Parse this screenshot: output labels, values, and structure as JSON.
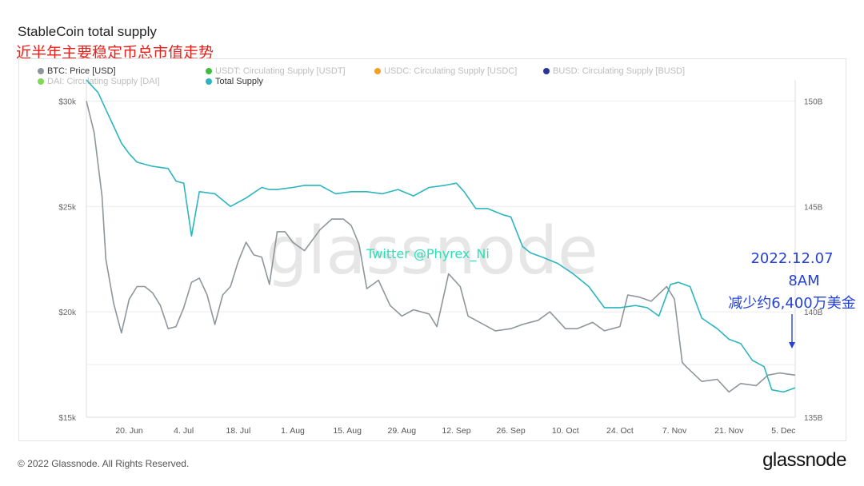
{
  "header": {
    "title": "StableCoin total supply",
    "subtitle": "近半年主要稳定币总市值走势"
  },
  "legend": [
    {
      "label": "BTC: Price [USD]",
      "color": "#8f969a",
      "active": true
    },
    {
      "label": "USDT: Circulating Supply [USDT]",
      "color": "#3bbf3b",
      "active": false
    },
    {
      "label": "USDC: Circulating Supply [USDC]",
      "color": "#f2a122",
      "active": false
    },
    {
      "label": "BUSD: Circulating Supply [BUSD]",
      "color": "#28349c",
      "active": false
    },
    {
      "label": "DAI: Circulating Supply [DAI]",
      "color": "#7ed957",
      "active": false
    },
    {
      "label": "Total Supply",
      "color": "#2bb6bf",
      "active": true
    }
  ],
  "watermark": {
    "text": "glassnode",
    "twitter": "Twitter @Phyrex_Ni"
  },
  "annotation": {
    "lines": [
      "2022.12.07",
      "8AM",
      "减少约6,400万美金"
    ],
    "color": "#2442d6"
  },
  "chart_data": {
    "type": "line",
    "x_ticks": [
      "20. Jun",
      "4. Jul",
      "18. Jul",
      "1. Aug",
      "15. Aug",
      "29. Aug",
      "12. Sep",
      "26. Sep",
      "10. Oct",
      "24. Oct",
      "7. Nov",
      "21. Nov",
      "5. Dec"
    ],
    "x_range": [
      "2022-06-09",
      "2022-12-08"
    ],
    "y_left": {
      "ticks": [
        "$15k",
        "$20k",
        "$25k",
        "$30k"
      ],
      "range": [
        15000,
        31000
      ]
    },
    "y_right": {
      "ticks": [
        "135B",
        "140B",
        "145B",
        "150B"
      ],
      "range": [
        135000000000,
        151000000000
      ]
    },
    "grid": true,
    "legend_position": "top",
    "series": [
      {
        "name": "BTC: Price [USD]",
        "axis": "left",
        "color": "#8f969a",
        "x": [
          "2022-06-09",
          "2022-06-11",
          "2022-06-13",
          "2022-06-14",
          "2022-06-16",
          "2022-06-18",
          "2022-06-20",
          "2022-06-22",
          "2022-06-24",
          "2022-06-26",
          "2022-06-28",
          "2022-06-30",
          "2022-07-02",
          "2022-07-04",
          "2022-07-06",
          "2022-07-08",
          "2022-07-10",
          "2022-07-12",
          "2022-07-14",
          "2022-07-16",
          "2022-07-18",
          "2022-07-20",
          "2022-07-22",
          "2022-07-24",
          "2022-07-26",
          "2022-07-28",
          "2022-07-30",
          "2022-08-01",
          "2022-08-04",
          "2022-08-08",
          "2022-08-11",
          "2022-08-14",
          "2022-08-16",
          "2022-08-18",
          "2022-08-20",
          "2022-08-23",
          "2022-08-26",
          "2022-08-29",
          "2022-09-01",
          "2022-09-05",
          "2022-09-07",
          "2022-09-10",
          "2022-09-13",
          "2022-09-15",
          "2022-09-19",
          "2022-09-22",
          "2022-09-26",
          "2022-09-29",
          "2022-10-03",
          "2022-10-06",
          "2022-10-10",
          "2022-10-13",
          "2022-10-17",
          "2022-10-20",
          "2022-10-24",
          "2022-10-26",
          "2022-10-29",
          "2022-11-01",
          "2022-11-05",
          "2022-11-07",
          "2022-11-09",
          "2022-11-10",
          "2022-11-14",
          "2022-11-18",
          "2022-11-21",
          "2022-11-24",
          "2022-11-28",
          "2022-12-01",
          "2022-12-04",
          "2022-12-08"
        ],
        "values": [
          30000,
          28500,
          25500,
          22500,
          20400,
          19000,
          20600,
          21200,
          21200,
          20900,
          20300,
          19200,
          19300,
          20200,
          21400,
          21600,
          20800,
          19400,
          20800,
          21200,
          22400,
          23300,
          22700,
          22600,
          21300,
          23800,
          23800,
          23300,
          22900,
          23900,
          24400,
          24400,
          24100,
          23200,
          21100,
          21500,
          20300,
          19800,
          20100,
          19900,
          19300,
          21800,
          21200,
          19800,
          19400,
          19100,
          19200,
          19400,
          19600,
          20000,
          19200,
          19200,
          19500,
          19100,
          19300,
          20800,
          20700,
          20500,
          21200,
          20600,
          17600,
          17400,
          16700,
          16800,
          16200,
          16600,
          16500,
          17000,
          17100,
          17000
        ]
      },
      {
        "name": "Total Supply",
        "axis": "right",
        "color": "#2bb6bf",
        "x": [
          "2022-06-09",
          "2022-06-12",
          "2022-06-14",
          "2022-06-16",
          "2022-06-18",
          "2022-06-20",
          "2022-06-22",
          "2022-06-26",
          "2022-06-30",
          "2022-07-02",
          "2022-07-04",
          "2022-07-06",
          "2022-07-08",
          "2022-07-12",
          "2022-07-16",
          "2022-07-20",
          "2022-07-24",
          "2022-07-26",
          "2022-07-28",
          "2022-08-01",
          "2022-08-04",
          "2022-08-08",
          "2022-08-12",
          "2022-08-16",
          "2022-08-20",
          "2022-08-24",
          "2022-08-28",
          "2022-09-01",
          "2022-09-05",
          "2022-09-09",
          "2022-09-12",
          "2022-09-14",
          "2022-09-17",
          "2022-09-20",
          "2022-09-24",
          "2022-09-26",
          "2022-09-29",
          "2022-10-01",
          "2022-10-04",
          "2022-10-08",
          "2022-10-12",
          "2022-10-16",
          "2022-10-20",
          "2022-10-24",
          "2022-10-28",
          "2022-10-31",
          "2022-11-03",
          "2022-11-06",
          "2022-11-08",
          "2022-11-11",
          "2022-11-14",
          "2022-11-18",
          "2022-11-21",
          "2022-11-24",
          "2022-11-27",
          "2022-11-30",
          "2022-12-02",
          "2022-12-05",
          "2022-12-08"
        ],
        "values": [
          151000000000,
          150400000000,
          149600000000,
          148800000000,
          148000000000,
          147500000000,
          147100000000,
          146900000000,
          146800000000,
          146200000000,
          146100000000,
          143600000000,
          145700000000,
          145600000000,
          145000000000,
          145400000000,
          145900000000,
          145800000000,
          145800000000,
          145900000000,
          146000000000,
          146000000000,
          145600000000,
          145700000000,
          145700000000,
          145600000000,
          145800000000,
          145500000000,
          145900000000,
          146000000000,
          146100000000,
          145700000000,
          144900000000,
          144900000000,
          144600000000,
          144500000000,
          143100000000,
          142800000000,
          142600000000,
          142300000000,
          141800000000,
          141200000000,
          140200000000,
          140200000000,
          140300000000,
          140200000000,
          139800000000,
          141300000000,
          141400000000,
          141200000000,
          139700000000,
          139200000000,
          138700000000,
          138500000000,
          137700000000,
          137400000000,
          136300000000,
          136200000000,
          136400000000
        ]
      }
    ]
  },
  "footer": {
    "copyright": "© 2022 Glassnode. All Rights Reserved.",
    "brand": "glassnode"
  }
}
